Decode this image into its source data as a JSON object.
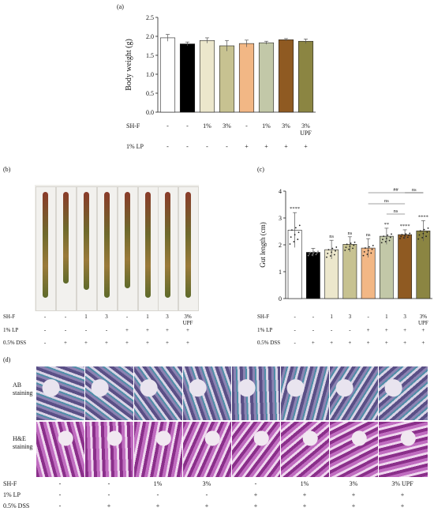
{
  "panels": {
    "a": "(a)",
    "b": "(b)",
    "c": "(c)",
    "d": "(d)"
  },
  "chart_data": [
    {
      "type": "bar",
      "panel": "(a)",
      "ylabel": "Body weight (g)",
      "ylim": [
        0,
        2.5
      ],
      "yticks": [
        "0.0",
        "0.5",
        "1.0",
        "1.5",
        "2.0",
        "2.5"
      ],
      "values": [
        1.96,
        1.8,
        1.89,
        1.75,
        1.81,
        1.83,
        1.91,
        1.87
      ],
      "errors": [
        0.09,
        0.05,
        0.07,
        0.14,
        0.09,
        0.04,
        0.03,
        0.06
      ],
      "colors": [
        "#ffffff",
        "#000000",
        "#ece7cc",
        "#c7c291",
        "#f2b785",
        "#c2c8a8",
        "#8f5a22",
        "#8b8542"
      ]
    },
    {
      "type": "bar",
      "panel": "(c)",
      "ylabel": "Gut length (cm)",
      "ylim": [
        0,
        4
      ],
      "yticks": [
        "0",
        "1",
        "2",
        "3",
        "4"
      ],
      "values": [
        2.55,
        1.72,
        1.82,
        2.02,
        1.88,
        2.32,
        2.38,
        2.52
      ],
      "errors": [
        0.65,
        0.15,
        0.35,
        0.28,
        0.35,
        0.3,
        0.18,
        0.38
      ],
      "colors": [
        "#ffffff",
        "#000000",
        "#ece7cc",
        "#c7c291",
        "#f2b785",
        "#c2c8a8",
        "#8f5a22",
        "#8b8542"
      ],
      "significance": [
        "****",
        "",
        "ns",
        "ns",
        "ns",
        "**",
        "****",
        "****"
      ],
      "brackets": [
        {
          "from": 4,
          "to": 7,
          "label": "##"
        },
        {
          "from": 4,
          "to": 6,
          "label": "ns"
        },
        {
          "from": 5,
          "to": 6,
          "label": "ns"
        },
        {
          "from": 6,
          "to": 7,
          "label": "ns"
        }
      ]
    }
  ],
  "table_a": {
    "rows": [
      {
        "label": "SH-F",
        "cells": [
          "-",
          "-",
          "1%",
          "3%",
          "-",
          "1%",
          "3%",
          "3%\nUPF"
        ]
      },
      {
        "label": "1% LP",
        "cells": [
          "-",
          "-",
          "-",
          "-",
          "+",
          "+",
          "+",
          "+"
        ]
      }
    ]
  },
  "table_b": {
    "rows": [
      {
        "label": "SH-F",
        "cells": [
          "-",
          "-",
          "1",
          "3",
          "-",
          "1",
          "3",
          "3%\nUPF"
        ]
      },
      {
        "label": "1% LP",
        "cells": [
          "-",
          "-",
          "-",
          "-",
          "+",
          "+",
          "+",
          "+"
        ]
      },
      {
        "label": "0.5% DSS",
        "cells": [
          "-",
          "+",
          "+",
          "+",
          "+",
          "+",
          "+",
          "+"
        ]
      }
    ]
  },
  "table_c": {
    "rows": [
      {
        "label": "SH-F",
        "cells": [
          "-",
          "-",
          "1",
          "3",
          "-",
          "1",
          "3",
          "3%\nUPF"
        ]
      },
      {
        "label": "1% LP",
        "cells": [
          "-",
          "-",
          "-",
          "-",
          "+",
          "+",
          "+",
          "+"
        ]
      },
      {
        "label": "0.5% DSS",
        "cells": [
          "-",
          "+",
          "+",
          "+",
          "+",
          "+",
          "+",
          "+"
        ]
      }
    ]
  },
  "table_d": {
    "rows": [
      {
        "label": "SH-F",
        "cells": [
          "-",
          "-",
          "1%",
          "3%",
          "-",
          "1%",
          "3%",
          "3% UPF"
        ]
      },
      {
        "label": "1% LP",
        "cells": [
          "-",
          "-",
          "-",
          "-",
          "+",
          "+",
          "+",
          "+"
        ]
      },
      {
        "label": "0.5% DSS",
        "cells": [
          "-",
          "+",
          "+",
          "+",
          "+",
          "+",
          "+",
          "+"
        ]
      }
    ]
  },
  "histology": {
    "ab_label": "AB\nstaining",
    "he_label": "H&E\nstaining"
  }
}
